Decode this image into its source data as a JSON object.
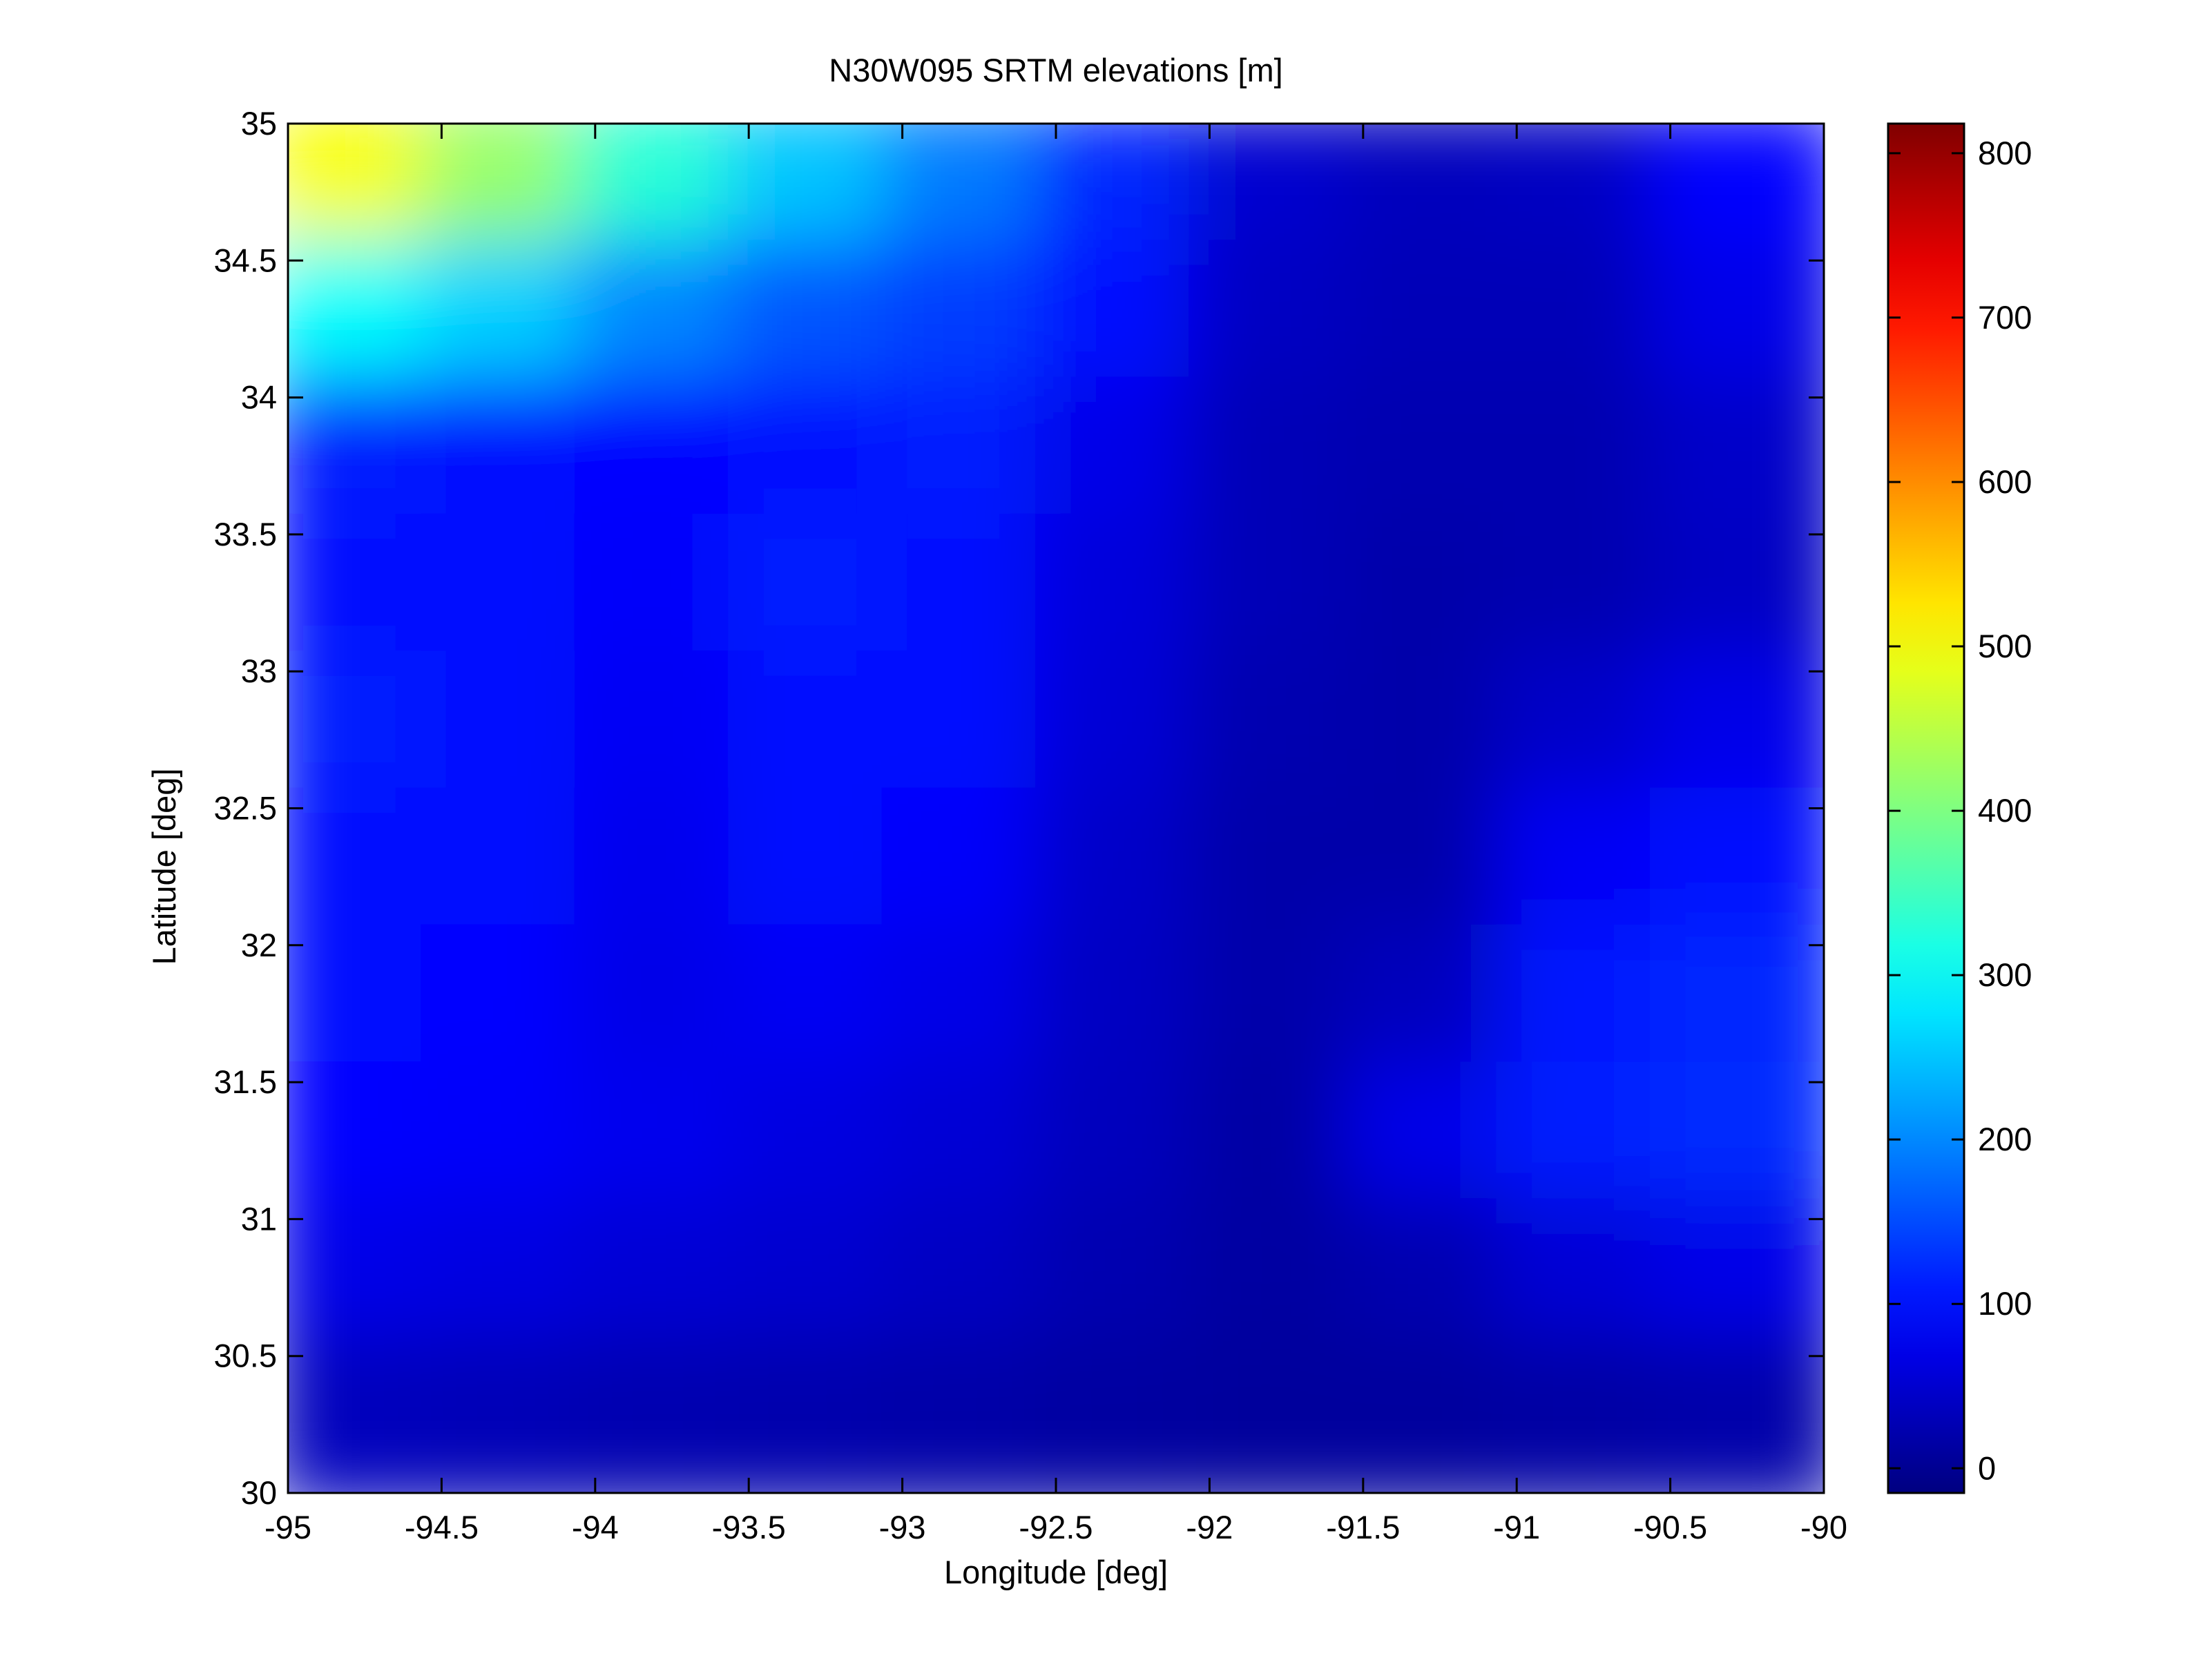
{
  "chart_data": {
    "type": "heatmap",
    "title": "N30W095 SRTM elevations [m]",
    "xlabel": "Longitude [deg]",
    "ylabel": "Latitude [deg]",
    "xlim": [
      -95,
      -90
    ],
    "ylim": [
      30,
      35
    ],
    "x_ticks": [
      -95,
      -94.5,
      -94,
      -93.5,
      -93,
      -92.5,
      -92,
      -91.5,
      -91,
      -90.5,
      -90
    ],
    "x_tick_labels": [
      "-95",
      "-94.5",
      "-94",
      "-93.5",
      "-93",
      "-92.5",
      "-92",
      "-91.5",
      "-91",
      "-90.5",
      "-90"
    ],
    "y_ticks": [
      30,
      30.5,
      31,
      31.5,
      32,
      32.5,
      33,
      33.5,
      34,
      34.5,
      35
    ],
    "y_tick_labels": [
      "30",
      "30.5",
      "31",
      "31.5",
      "32",
      "32.5",
      "33",
      "33.5",
      "34",
      "34.5",
      "35"
    ],
    "grid": false,
    "colormap": "jet",
    "colorbar": {
      "range": [
        -15,
        818
      ],
      "ticks": [
        0,
        100,
        200,
        300,
        400,
        500,
        600,
        700,
        800
      ],
      "tick_labels": [
        "0",
        "100",
        "200",
        "300",
        "400",
        "500",
        "600",
        "700",
        "800"
      ],
      "position": "right"
    },
    "elevation_grid": {
      "cols_lon": [
        -94.75,
        -94.25,
        -93.75,
        -93.25,
        -92.75,
        -92.25,
        -91.75,
        -91.25,
        -90.75,
        -90.25
      ],
      "rows_lat": [
        34.75,
        34.25,
        33.75,
        33.25,
        32.75,
        32.25,
        31.75,
        31.25,
        30.75,
        30.25
      ],
      "values": [
        [
          500,
          420,
          330,
          250,
          190,
          120,
          50,
          35,
          40,
          90
        ],
        [
          300,
          260,
          200,
          160,
          140,
          95,
          40,
          30,
          30,
          70
        ],
        [
          110,
          100,
          90,
          100,
          110,
          70,
          30,
          25,
          25,
          45
        ],
        [
          100,
          95,
          85,
          110,
          100,
          60,
          30,
          20,
          25,
          40
        ],
        [
          110,
          100,
          80,
          100,
          95,
          55,
          25,
          20,
          45,
          70
        ],
        [
          100,
          95,
          75,
          95,
          85,
          45,
          20,
          20,
          80,
          95
        ],
        [
          95,
          90,
          70,
          80,
          70,
          40,
          20,
          35,
          105,
          120
        ],
        [
          90,
          85,
          75,
          65,
          55,
          35,
          15,
          70,
          110,
          125
        ],
        [
          70,
          65,
          55,
          50,
          40,
          25,
          12,
          25,
          55,
          70
        ],
        [
          35,
          30,
          25,
          22,
          18,
          12,
          8,
          10,
          15,
          20
        ]
      ]
    }
  }
}
